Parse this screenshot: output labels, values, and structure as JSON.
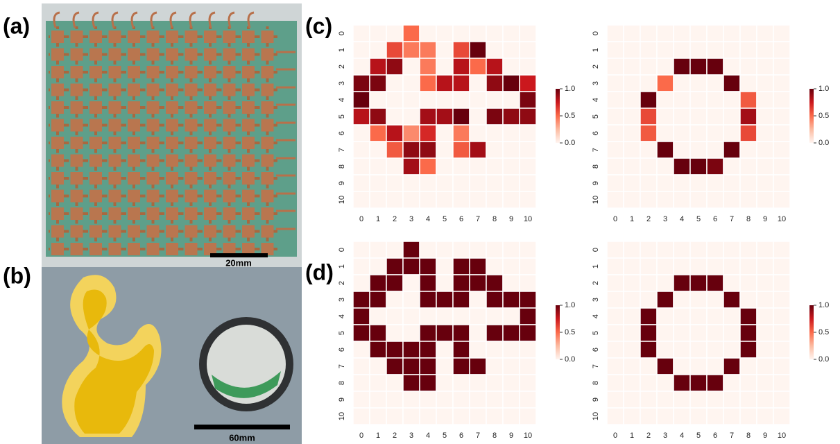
{
  "figure": {
    "panel_labels": [
      "(a)",
      "(b)",
      "(c)",
      "(d)"
    ],
    "scale_bars": [
      "20mm",
      "60mm"
    ]
  },
  "chart_data": [
    {
      "type": "heatmap",
      "xlim": [
        -0.5,
        10.5
      ],
      "ylim": [
        -0.5,
        10.5
      ],
      "xticks": [
        0,
        1,
        2,
        3,
        4,
        5,
        6,
        7,
        8,
        9,
        10
      ],
      "yticks": [
        0,
        1,
        2,
        3,
        4,
        5,
        6,
        7,
        8,
        9,
        10
      ],
      "clim": [
        0,
        1
      ],
      "cticks": [
        {
          "value": 0,
          "label": "0.0"
        },
        {
          "value": 0.5,
          "label": "0.5"
        },
        {
          "value": 1,
          "label": "1.0"
        }
      ],
      "colormap": [
        "#fff5f0",
        "#fcbba1",
        "#fb6a4a",
        "#cb181d",
        "#67000d"
      ],
      "values": [
        [
          0,
          0,
          0,
          0.5,
          0,
          0,
          0,
          0,
          0,
          0,
          0
        ],
        [
          0,
          0,
          0.6,
          0.45,
          0.45,
          0,
          0.6,
          1,
          0,
          0,
          0
        ],
        [
          0,
          0.8,
          0.9,
          0,
          0.45,
          0,
          0.8,
          0.5,
          0.8,
          0,
          0
        ],
        [
          0.95,
          0.95,
          0,
          0,
          0.5,
          0.8,
          0.8,
          0,
          0.9,
          1,
          0.75
        ],
        [
          1,
          0,
          0,
          0,
          0,
          0,
          0,
          0,
          0,
          0,
          0.95
        ],
        [
          0.8,
          0.9,
          0,
          0,
          0.85,
          0.85,
          1,
          0,
          0.95,
          0.9,
          0.9
        ],
        [
          0,
          0.5,
          0.8,
          0.4,
          0.7,
          0,
          0.45,
          0,
          0,
          0,
          0
        ],
        [
          0,
          0,
          0.55,
          0.9,
          0.9,
          0,
          0.55,
          0.85,
          0,
          0,
          0
        ],
        [
          0,
          0,
          0,
          0.85,
          0.5,
          0,
          0,
          0,
          0,
          0,
          0
        ],
        [
          0,
          0,
          0,
          0,
          0,
          0,
          0,
          0,
          0,
          0,
          0
        ],
        [
          0,
          0,
          0,
          0,
          0,
          0,
          0,
          0,
          0,
          0,
          0
        ]
      ]
    },
    {
      "type": "heatmap",
      "xlim": [
        -0.5,
        10.5
      ],
      "ylim": [
        -0.5,
        10.5
      ],
      "xticks": [
        0,
        1,
        2,
        3,
        4,
        5,
        6,
        7,
        8,
        9,
        10
      ],
      "yticks": [
        0,
        1,
        2,
        3,
        4,
        5,
        6,
        7,
        8,
        9,
        10
      ],
      "clim": [
        0,
        1
      ],
      "cticks": [
        {
          "value": 0,
          "label": "0.0"
        },
        {
          "value": 0.5,
          "label": "0.5"
        },
        {
          "value": 1,
          "label": "1.0"
        }
      ],
      "colormap": [
        "#fff5f0",
        "#fcbba1",
        "#fb6a4a",
        "#cb181d",
        "#67000d"
      ],
      "values": [
        [
          0,
          0,
          0,
          0,
          0,
          0,
          0,
          0,
          0,
          0,
          0
        ],
        [
          0,
          0,
          0,
          0,
          0,
          0,
          0,
          0,
          0,
          0,
          0
        ],
        [
          0,
          0,
          0,
          0,
          1,
          1,
          1,
          0,
          0,
          0,
          0
        ],
        [
          0,
          0,
          0,
          0.5,
          0,
          0,
          0,
          1,
          0,
          0,
          0
        ],
        [
          0,
          0,
          1,
          0,
          0,
          0,
          0,
          0,
          0.55,
          0,
          0
        ],
        [
          0,
          0,
          0.6,
          0,
          0,
          0,
          0,
          0,
          0.85,
          0,
          0
        ],
        [
          0,
          0,
          0.55,
          0,
          0,
          0,
          0,
          0,
          0.6,
          0,
          0
        ],
        [
          0,
          0,
          0,
          1,
          0,
          0,
          0,
          1,
          0,
          0,
          0
        ],
        [
          0,
          0,
          0,
          0,
          1,
          1,
          0.95,
          0,
          0,
          0,
          0
        ],
        [
          0,
          0,
          0,
          0,
          0,
          0,
          0,
          0,
          0,
          0,
          0
        ],
        [
          0,
          0,
          0,
          0,
          0,
          0,
          0,
          0,
          0,
          0,
          0
        ]
      ]
    },
    {
      "type": "heatmap",
      "xlim": [
        -0.5,
        10.5
      ],
      "ylim": [
        -0.5,
        10.5
      ],
      "xticks": [
        0,
        1,
        2,
        3,
        4,
        5,
        6,
        7,
        8,
        9,
        10
      ],
      "yticks": [
        0,
        1,
        2,
        3,
        4,
        5,
        6,
        7,
        8,
        9,
        10
      ],
      "clim": [
        0,
        1
      ],
      "cticks": [
        {
          "value": 0,
          "label": "0.0"
        },
        {
          "value": 0.5,
          "label": "0.5"
        },
        {
          "value": 1,
          "label": "1.0"
        }
      ],
      "colormap": [
        "#fff5f0",
        "#fcbba1",
        "#fb6a4a",
        "#cb181d",
        "#67000d"
      ],
      "values": [
        [
          0,
          0,
          0,
          1,
          0,
          0,
          0,
          0,
          0,
          0,
          0
        ],
        [
          0,
          0,
          1,
          1,
          1,
          0,
          1,
          1,
          0,
          0,
          0
        ],
        [
          0,
          1,
          1,
          0,
          1,
          0,
          1,
          1,
          1,
          0,
          0
        ],
        [
          1,
          1,
          0,
          0,
          1,
          1,
          1,
          0,
          1,
          1,
          1
        ],
        [
          1,
          0,
          0,
          0,
          0,
          0,
          0,
          0,
          0,
          0,
          1
        ],
        [
          1,
          1,
          0,
          0,
          1,
          1,
          1,
          0,
          1,
          1,
          1
        ],
        [
          0,
          1,
          1,
          1,
          1,
          0,
          1,
          0,
          0,
          0,
          0
        ],
        [
          0,
          0,
          1,
          1,
          1,
          0,
          1,
          1,
          0,
          0,
          0
        ],
        [
          0,
          0,
          0,
          1,
          1,
          0,
          0,
          0,
          0,
          0,
          0
        ],
        [
          0,
          0,
          0,
          0,
          0,
          0,
          0,
          0,
          0,
          0,
          0
        ],
        [
          0,
          0,
          0,
          0,
          0,
          0,
          0,
          0,
          0,
          0,
          0
        ]
      ]
    },
    {
      "type": "heatmap",
      "xlim": [
        -0.5,
        10.5
      ],
      "ylim": [
        -0.5,
        10.5
      ],
      "xticks": [
        0,
        1,
        2,
        3,
        4,
        5,
        6,
        7,
        8,
        9,
        10
      ],
      "yticks": [
        0,
        1,
        2,
        3,
        4,
        5,
        6,
        7,
        8,
        9,
        10
      ],
      "clim": [
        0,
        1
      ],
      "cticks": [
        {
          "value": 0,
          "label": "0.0"
        },
        {
          "value": 0.5,
          "label": "0.5"
        },
        {
          "value": 1,
          "label": "1.0"
        }
      ],
      "colormap": [
        "#fff5f0",
        "#fcbba1",
        "#fb6a4a",
        "#cb181d",
        "#67000d"
      ],
      "values": [
        [
          0,
          0,
          0,
          0,
          0,
          0,
          0,
          0,
          0,
          0,
          0
        ],
        [
          0,
          0,
          0,
          0,
          0,
          0,
          0,
          0,
          0,
          0,
          0
        ],
        [
          0,
          0,
          0,
          0,
          1,
          1,
          1,
          0,
          0,
          0,
          0
        ],
        [
          0,
          0,
          0,
          1,
          0,
          0,
          0,
          1,
          0,
          0,
          0
        ],
        [
          0,
          0,
          1,
          0,
          0,
          0,
          0,
          0,
          1,
          0,
          0
        ],
        [
          0,
          0,
          1,
          0,
          0,
          0,
          0,
          0,
          1,
          0,
          0
        ],
        [
          0,
          0,
          1,
          0,
          0,
          0,
          0,
          0,
          1,
          0,
          0
        ],
        [
          0,
          0,
          0,
          1,
          0,
          0,
          0,
          1,
          0,
          0,
          0
        ],
        [
          0,
          0,
          0,
          0,
          1,
          1,
          1,
          0,
          0,
          0,
          0
        ],
        [
          0,
          0,
          0,
          0,
          0,
          0,
          0,
          0,
          0,
          0,
          0
        ],
        [
          0,
          0,
          0,
          0,
          0,
          0,
          0,
          0,
          0,
          0,
          0
        ]
      ]
    }
  ]
}
